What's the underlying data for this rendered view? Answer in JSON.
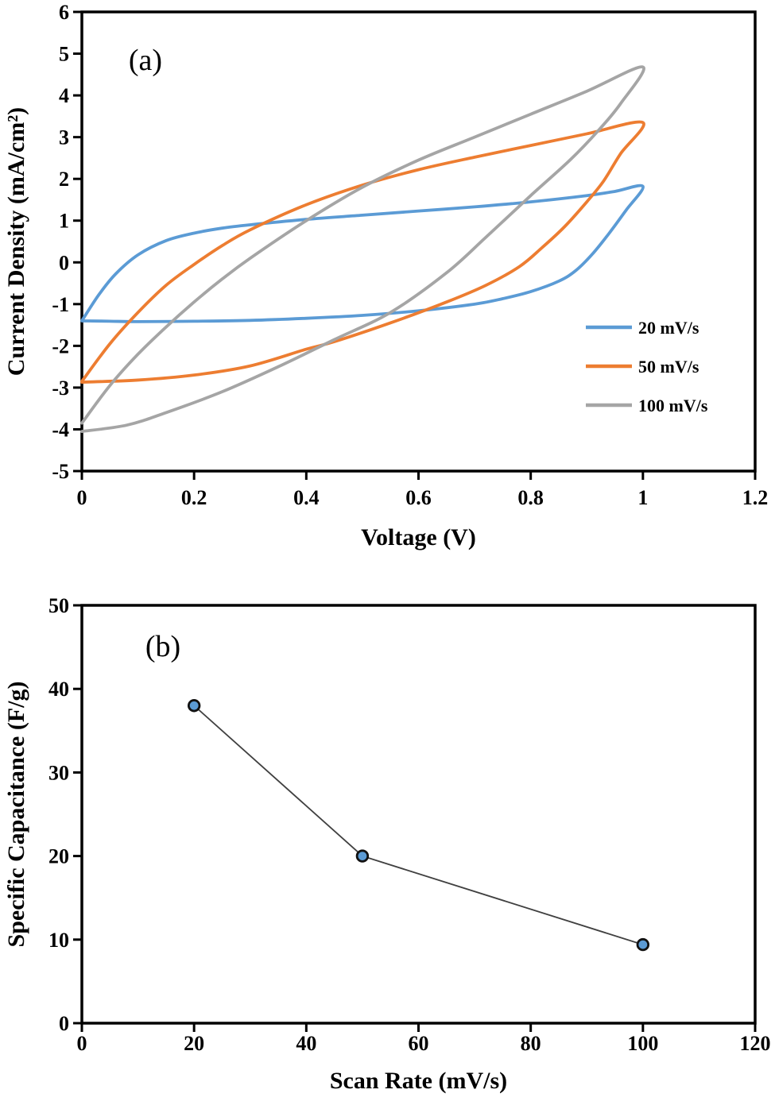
{
  "figure": {
    "background": "#ffffff",
    "description": "Two-panel electrochemistry figure: (a) cyclic voltammetry curves, (b) specific capacitance vs scan rate"
  },
  "chart_data": [
    {
      "id": "cv",
      "type": "line",
      "panel_label": "(a)",
      "xlabel": "Voltage (V)",
      "ylabel": "Current Density (mA/cm²)",
      "xlim": [
        0,
        1.2
      ],
      "ylim": [
        -5,
        6
      ],
      "xtick_values": [
        0,
        0.2,
        0.4,
        0.6,
        0.8,
        1,
        1.2
      ],
      "xtick_labels": [
        "0",
        "0.2",
        "0.4",
        "0.6",
        "0.8",
        "1",
        "1.2"
      ],
      "ytick_values": [
        -5,
        -4,
        -3,
        -2,
        -1,
        0,
        1,
        2,
        3,
        4,
        5,
        6
      ],
      "ytick_labels": [
        "-5",
        "-4",
        "-3",
        "-2",
        "-1",
        "0",
        "1",
        "2",
        "3",
        "4",
        "5",
        "6"
      ],
      "grid": false,
      "legend_position": "right-middle",
      "series": [
        {
          "name": "20 mV/s",
          "color": "#5B9BD5",
          "loop": {
            "forward": [
              [
                0,
                -1.4
              ],
              [
                0.03,
                -0.78
              ],
              [
                0.06,
                -0.28
              ],
              [
                0.1,
                0.18
              ],
              [
                0.15,
                0.52
              ],
              [
                0.2,
                0.7
              ],
              [
                0.25,
                0.82
              ],
              [
                0.3,
                0.9
              ],
              [
                0.4,
                1.03
              ],
              [
                0.5,
                1.13
              ],
              [
                0.6,
                1.23
              ],
              [
                0.7,
                1.33
              ],
              [
                0.8,
                1.45
              ],
              [
                0.9,
                1.6
              ],
              [
                0.95,
                1.7
              ],
              [
                1.0,
                1.82
              ]
            ],
            "return": [
              [
                0.97,
                1.25
              ],
              [
                0.94,
                0.7
              ],
              [
                0.91,
                0.2
              ],
              [
                0.88,
                -0.2
              ],
              [
                0.85,
                -0.45
              ],
              [
                0.8,
                -0.7
              ],
              [
                0.75,
                -0.87
              ],
              [
                0.7,
                -1.0
              ],
              [
                0.6,
                -1.16
              ],
              [
                0.5,
                -1.27
              ],
              [
                0.4,
                -1.34
              ],
              [
                0.3,
                -1.39
              ],
              [
                0.2,
                -1.41
              ],
              [
                0.1,
                -1.42
              ],
              [
                0.05,
                -1.41
              ],
              [
                0.0,
                -1.4
              ]
            ]
          }
        },
        {
          "name": "50 mV/s",
          "color": "#ED7D31",
          "loop": {
            "forward": [
              [
                0,
                -2.85
              ],
              [
                0.05,
                -1.95
              ],
              [
                0.1,
                -1.2
              ],
              [
                0.15,
                -0.55
              ],
              [
                0.2,
                -0.05
              ],
              [
                0.25,
                0.4
              ],
              [
                0.3,
                0.78
              ],
              [
                0.4,
                1.38
              ],
              [
                0.5,
                1.85
              ],
              [
                0.6,
                2.22
              ],
              [
                0.7,
                2.52
              ],
              [
                0.8,
                2.8
              ],
              [
                0.9,
                3.08
              ],
              [
                1.0,
                3.35
              ]
            ],
            "return": [
              [
                0.96,
                2.6
              ],
              [
                0.93,
                1.95
              ],
              [
                0.9,
                1.45
              ],
              [
                0.86,
                0.85
              ],
              [
                0.82,
                0.35
              ],
              [
                0.78,
                -0.1
              ],
              [
                0.72,
                -0.55
              ],
              [
                0.65,
                -0.95
              ],
              [
                0.55,
                -1.45
              ],
              [
                0.45,
                -1.9
              ],
              [
                0.4,
                -2.08
              ],
              [
                0.3,
                -2.48
              ],
              [
                0.2,
                -2.7
              ],
              [
                0.1,
                -2.82
              ],
              [
                0.0,
                -2.87
              ]
            ]
          }
        },
        {
          "name": "100 mV/s",
          "color": "#A5A5A5",
          "loop": {
            "forward": [
              [
                0,
                -3.85
              ],
              [
                0.05,
                -2.95
              ],
              [
                0.1,
                -2.2
              ],
              [
                0.15,
                -1.55
              ],
              [
                0.2,
                -0.95
              ],
              [
                0.25,
                -0.4
              ],
              [
                0.3,
                0.1
              ],
              [
                0.4,
                1.0
              ],
              [
                0.5,
                1.8
              ],
              [
                0.6,
                2.45
              ],
              [
                0.7,
                3.0
              ],
              [
                0.8,
                3.55
              ],
              [
                0.9,
                4.1
              ],
              [
                1.0,
                4.68
              ]
            ],
            "return": [
              [
                0.96,
                3.8
              ],
              [
                0.92,
                3.15
              ],
              [
                0.87,
                2.45
              ],
              [
                0.8,
                1.6
              ],
              [
                0.72,
                0.6
              ],
              [
                0.65,
                -0.25
              ],
              [
                0.55,
                -1.2
              ],
              [
                0.45,
                -1.85
              ],
              [
                0.35,
                -2.5
              ],
              [
                0.25,
                -3.1
              ],
              [
                0.15,
                -3.6
              ],
              [
                0.08,
                -3.9
              ],
              [
                0.0,
                -4.05
              ]
            ]
          }
        }
      ]
    },
    {
      "id": "capacitance",
      "type": "scatter",
      "panel_label": "(b)",
      "xlabel": "Scan Rate (mV/s)",
      "ylabel": "Specific Capacitance (F/g)",
      "xlim": [
        0,
        120
      ],
      "ylim": [
        0,
        50
      ],
      "xtick_values": [
        0,
        20,
        40,
        60,
        80,
        100,
        120
      ],
      "xtick_labels": [
        "0",
        "20",
        "40",
        "60",
        "80",
        "100",
        "120"
      ],
      "ytick_values": [
        0,
        10,
        20,
        30,
        40,
        50
      ],
      "ytick_labels": [
        "0",
        "10",
        "20",
        "30",
        "40",
        "50"
      ],
      "grid": false,
      "series": [
        {
          "name": "Specific Capacitance",
          "line_color": "#404040",
          "marker": {
            "shape": "circle",
            "fill": "#5B9BD5",
            "edge": "#111111"
          },
          "points": [
            [
              20,
              38
            ],
            [
              50,
              20
            ],
            [
              100,
              9.4
            ]
          ]
        }
      ]
    }
  ]
}
